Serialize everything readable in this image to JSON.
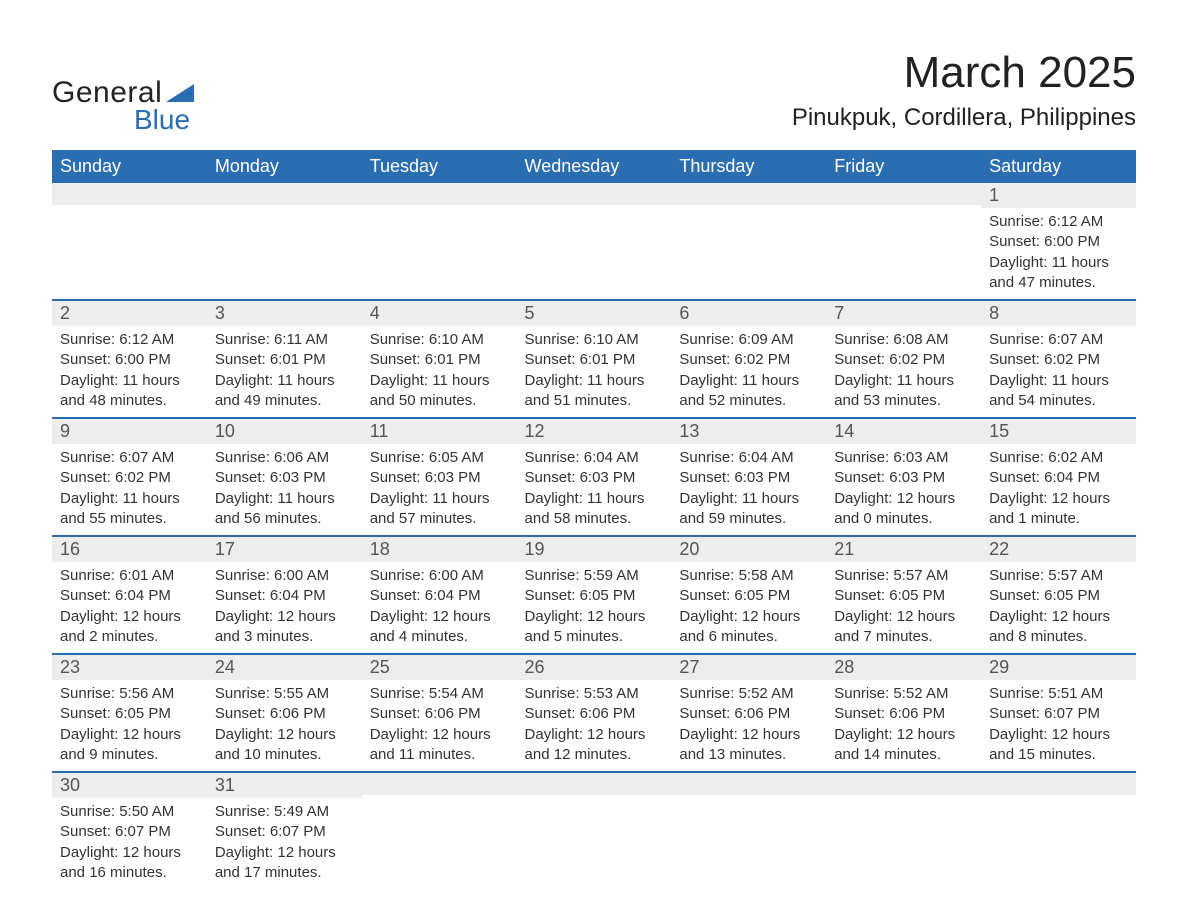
{
  "brand": {
    "word1": "General",
    "word2": "Blue"
  },
  "title": "March 2025",
  "location": "Pinukpuk, Cordillera, Philippines",
  "colors": {
    "header_bg": "#2a6db0",
    "header_fg": "#ffffff",
    "daynum_bg": "#ededed",
    "border": "#2a6db0",
    "text": "#333333",
    "page_bg": "#ffffff",
    "brand_blue": "#2a6db0"
  },
  "typography": {
    "title_fontsize": 44,
    "location_fontsize": 24,
    "header_fontsize": 18,
    "daynum_fontsize": 18,
    "body_fontsize": 15
  },
  "layout": {
    "columns": 7,
    "rows": 6
  },
  "day_headers": [
    "Sunday",
    "Monday",
    "Tuesday",
    "Wednesday",
    "Thursday",
    "Friday",
    "Saturday"
  ],
  "weeks": [
    [
      {
        "day": "",
        "sunrise": "",
        "sunset": "",
        "daylight": ""
      },
      {
        "day": "",
        "sunrise": "",
        "sunset": "",
        "daylight": ""
      },
      {
        "day": "",
        "sunrise": "",
        "sunset": "",
        "daylight": ""
      },
      {
        "day": "",
        "sunrise": "",
        "sunset": "",
        "daylight": ""
      },
      {
        "day": "",
        "sunrise": "",
        "sunset": "",
        "daylight": ""
      },
      {
        "day": "",
        "sunrise": "",
        "sunset": "",
        "daylight": ""
      },
      {
        "day": "1",
        "sunrise": "Sunrise: 6:12 AM",
        "sunset": "Sunset: 6:00 PM",
        "daylight": "Daylight: 11 hours and 47 minutes."
      }
    ],
    [
      {
        "day": "2",
        "sunrise": "Sunrise: 6:12 AM",
        "sunset": "Sunset: 6:00 PM",
        "daylight": "Daylight: 11 hours and 48 minutes."
      },
      {
        "day": "3",
        "sunrise": "Sunrise: 6:11 AM",
        "sunset": "Sunset: 6:01 PM",
        "daylight": "Daylight: 11 hours and 49 minutes."
      },
      {
        "day": "4",
        "sunrise": "Sunrise: 6:10 AM",
        "sunset": "Sunset: 6:01 PM",
        "daylight": "Daylight: 11 hours and 50 minutes."
      },
      {
        "day": "5",
        "sunrise": "Sunrise: 6:10 AM",
        "sunset": "Sunset: 6:01 PM",
        "daylight": "Daylight: 11 hours and 51 minutes."
      },
      {
        "day": "6",
        "sunrise": "Sunrise: 6:09 AM",
        "sunset": "Sunset: 6:02 PM",
        "daylight": "Daylight: 11 hours and 52 minutes."
      },
      {
        "day": "7",
        "sunrise": "Sunrise: 6:08 AM",
        "sunset": "Sunset: 6:02 PM",
        "daylight": "Daylight: 11 hours and 53 minutes."
      },
      {
        "day": "8",
        "sunrise": "Sunrise: 6:07 AM",
        "sunset": "Sunset: 6:02 PM",
        "daylight": "Daylight: 11 hours and 54 minutes."
      }
    ],
    [
      {
        "day": "9",
        "sunrise": "Sunrise: 6:07 AM",
        "sunset": "Sunset: 6:02 PM",
        "daylight": "Daylight: 11 hours and 55 minutes."
      },
      {
        "day": "10",
        "sunrise": "Sunrise: 6:06 AM",
        "sunset": "Sunset: 6:03 PM",
        "daylight": "Daylight: 11 hours and 56 minutes."
      },
      {
        "day": "11",
        "sunrise": "Sunrise: 6:05 AM",
        "sunset": "Sunset: 6:03 PM",
        "daylight": "Daylight: 11 hours and 57 minutes."
      },
      {
        "day": "12",
        "sunrise": "Sunrise: 6:04 AM",
        "sunset": "Sunset: 6:03 PM",
        "daylight": "Daylight: 11 hours and 58 minutes."
      },
      {
        "day": "13",
        "sunrise": "Sunrise: 6:04 AM",
        "sunset": "Sunset: 6:03 PM",
        "daylight": "Daylight: 11 hours and 59 minutes."
      },
      {
        "day": "14",
        "sunrise": "Sunrise: 6:03 AM",
        "sunset": "Sunset: 6:03 PM",
        "daylight": "Daylight: 12 hours and 0 minutes."
      },
      {
        "day": "15",
        "sunrise": "Sunrise: 6:02 AM",
        "sunset": "Sunset: 6:04 PM",
        "daylight": "Daylight: 12 hours and 1 minute."
      }
    ],
    [
      {
        "day": "16",
        "sunrise": "Sunrise: 6:01 AM",
        "sunset": "Sunset: 6:04 PM",
        "daylight": "Daylight: 12 hours and 2 minutes."
      },
      {
        "day": "17",
        "sunrise": "Sunrise: 6:00 AM",
        "sunset": "Sunset: 6:04 PM",
        "daylight": "Daylight: 12 hours and 3 minutes."
      },
      {
        "day": "18",
        "sunrise": "Sunrise: 6:00 AM",
        "sunset": "Sunset: 6:04 PM",
        "daylight": "Daylight: 12 hours and 4 minutes."
      },
      {
        "day": "19",
        "sunrise": "Sunrise: 5:59 AM",
        "sunset": "Sunset: 6:05 PM",
        "daylight": "Daylight: 12 hours and 5 minutes."
      },
      {
        "day": "20",
        "sunrise": "Sunrise: 5:58 AM",
        "sunset": "Sunset: 6:05 PM",
        "daylight": "Daylight: 12 hours and 6 minutes."
      },
      {
        "day": "21",
        "sunrise": "Sunrise: 5:57 AM",
        "sunset": "Sunset: 6:05 PM",
        "daylight": "Daylight: 12 hours and 7 minutes."
      },
      {
        "day": "22",
        "sunrise": "Sunrise: 5:57 AM",
        "sunset": "Sunset: 6:05 PM",
        "daylight": "Daylight: 12 hours and 8 minutes."
      }
    ],
    [
      {
        "day": "23",
        "sunrise": "Sunrise: 5:56 AM",
        "sunset": "Sunset: 6:05 PM",
        "daylight": "Daylight: 12 hours and 9 minutes."
      },
      {
        "day": "24",
        "sunrise": "Sunrise: 5:55 AM",
        "sunset": "Sunset: 6:06 PM",
        "daylight": "Daylight: 12 hours and 10 minutes."
      },
      {
        "day": "25",
        "sunrise": "Sunrise: 5:54 AM",
        "sunset": "Sunset: 6:06 PM",
        "daylight": "Daylight: 12 hours and 11 minutes."
      },
      {
        "day": "26",
        "sunrise": "Sunrise: 5:53 AM",
        "sunset": "Sunset: 6:06 PM",
        "daylight": "Daylight: 12 hours and 12 minutes."
      },
      {
        "day": "27",
        "sunrise": "Sunrise: 5:52 AM",
        "sunset": "Sunset: 6:06 PM",
        "daylight": "Daylight: 12 hours and 13 minutes."
      },
      {
        "day": "28",
        "sunrise": "Sunrise: 5:52 AM",
        "sunset": "Sunset: 6:06 PM",
        "daylight": "Daylight: 12 hours and 14 minutes."
      },
      {
        "day": "29",
        "sunrise": "Sunrise: 5:51 AM",
        "sunset": "Sunset: 6:07 PM",
        "daylight": "Daylight: 12 hours and 15 minutes."
      }
    ],
    [
      {
        "day": "30",
        "sunrise": "Sunrise: 5:50 AM",
        "sunset": "Sunset: 6:07 PM",
        "daylight": "Daylight: 12 hours and 16 minutes."
      },
      {
        "day": "31",
        "sunrise": "Sunrise: 5:49 AM",
        "sunset": "Sunset: 6:07 PM",
        "daylight": "Daylight: 12 hours and 17 minutes."
      },
      {
        "day": "",
        "sunrise": "",
        "sunset": "",
        "daylight": ""
      },
      {
        "day": "",
        "sunrise": "",
        "sunset": "",
        "daylight": ""
      },
      {
        "day": "",
        "sunrise": "",
        "sunset": "",
        "daylight": ""
      },
      {
        "day": "",
        "sunrise": "",
        "sunset": "",
        "daylight": ""
      },
      {
        "day": "",
        "sunrise": "",
        "sunset": "",
        "daylight": ""
      }
    ]
  ]
}
